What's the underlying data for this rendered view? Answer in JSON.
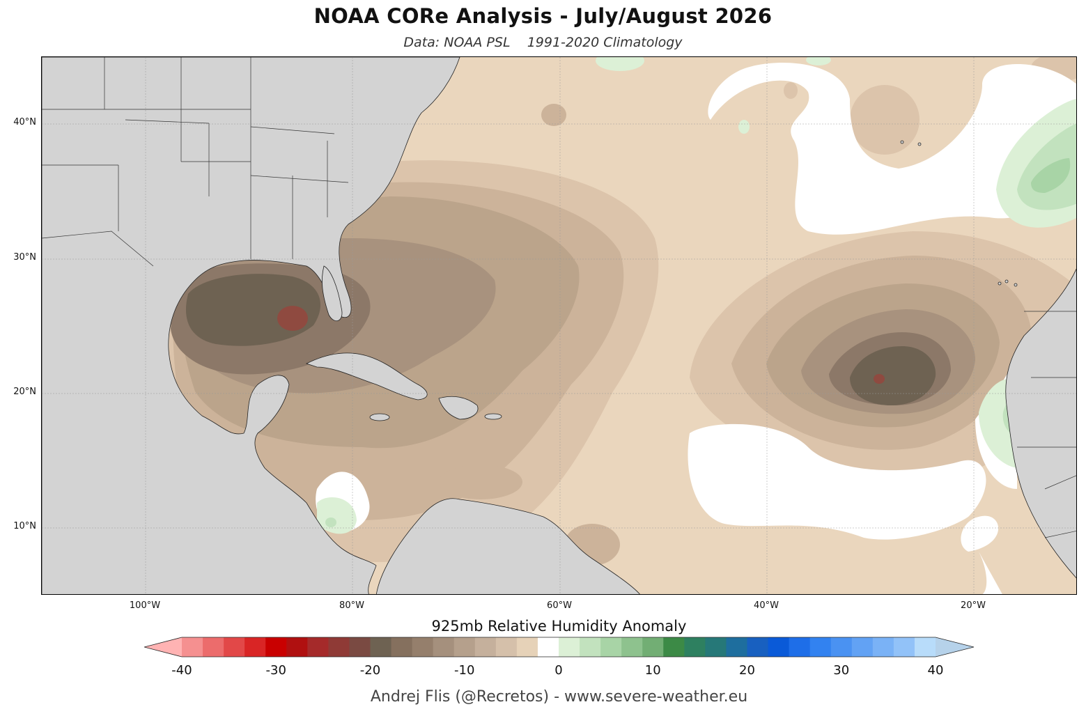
{
  "title": "NOAA CORe Analysis - July/August 2026",
  "subtitle": "Data: NOAA PSL    1991-2020 Climatology",
  "map": {
    "lat_labels": [
      "40°N",
      "30°N",
      "20°N",
      "10°N"
    ],
    "lon_labels": [
      "100°W",
      "80°W",
      "60°W",
      "40°W",
      "20°W"
    ],
    "land_color": "#d3d3d3"
  },
  "colorbar": {
    "title": "925mb Relative Humidity Anomaly",
    "ticks": [
      "-40",
      "-30",
      "-20",
      "-10",
      "0",
      "10",
      "20",
      "30",
      "40"
    ],
    "colors": [
      "#ffb3b3",
      "#f59090",
      "#ec6c6c",
      "#e24848",
      "#d92525",
      "#c90000",
      "#b01010",
      "#a52a2a",
      "#8f3a36",
      "#7a4a42",
      "#6e6252",
      "#85705e",
      "#957f6c",
      "#a5907d",
      "#b5a08c",
      "#c5b09c",
      "#d5c0aa",
      "#e6d2b8",
      "#ffffff",
      "#dcf0d6",
      "#c2e2be",
      "#a8d4a6",
      "#8ec28e",
      "#72ae74",
      "#3c8a46",
      "#2e8060",
      "#267878",
      "#1e6e9e",
      "#1860c0",
      "#0a5ad8",
      "#1e6ee8",
      "#3282f0",
      "#4a92f2",
      "#62a2f4",
      "#7ab2f6",
      "#92c2f8",
      "#b8dcfa",
      "#b6d2ea"
    ]
  },
  "credit": "Andrej Flis (@Recretos) - www.severe-weather.eu"
}
